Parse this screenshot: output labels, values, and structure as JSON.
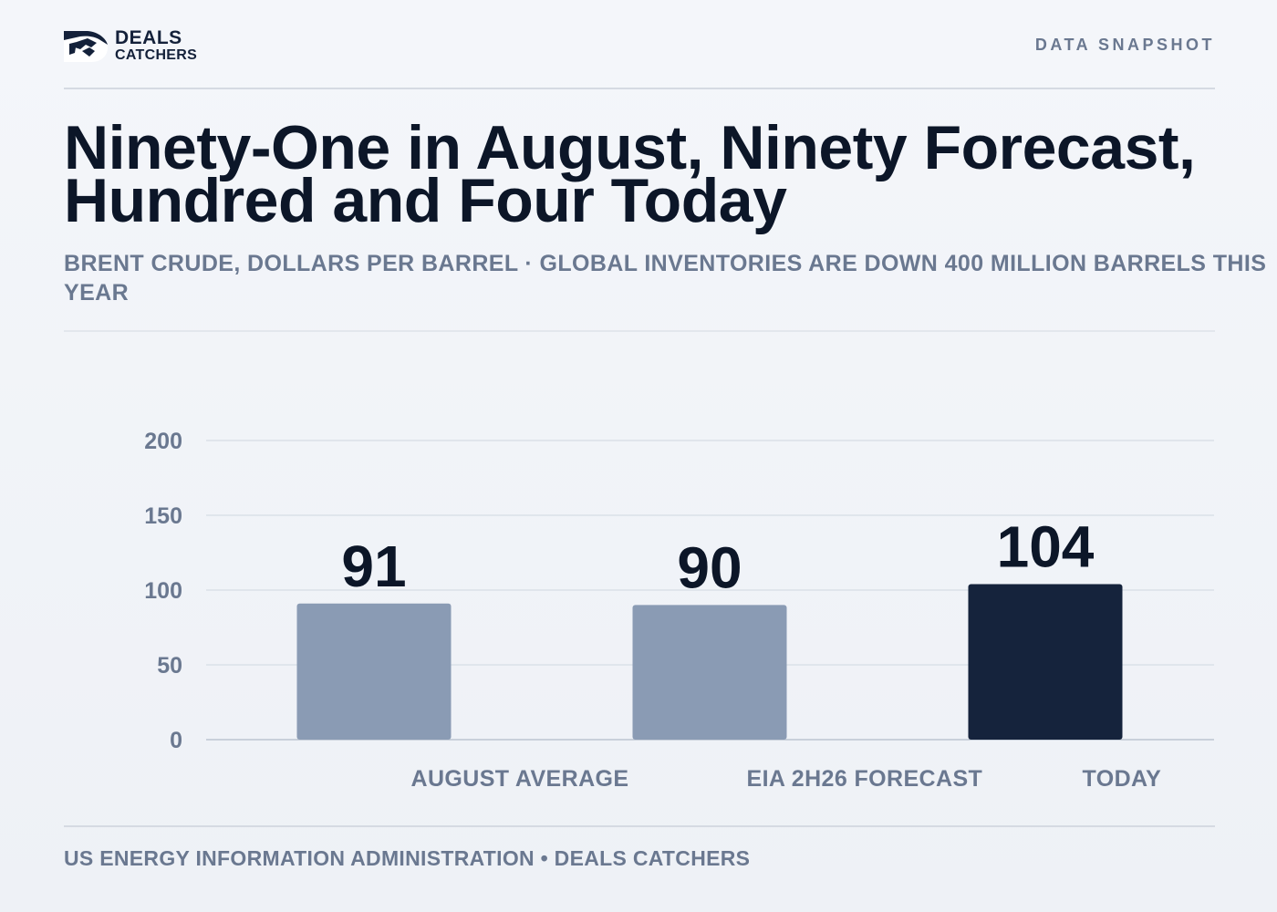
{
  "brand": {
    "line1": "DEALS",
    "line2": "CATCHERS",
    "logo_icon": "handshake-icon"
  },
  "header": {
    "tag": "DATA SNAPSHOT"
  },
  "title": "Ninety-One in August, Ninety Forecast, Hundred and Four Today",
  "subtitle": "BRENT CRUDE, DOLLARS PER BARREL · GLOBAL INVENTORIES ARE DOWN 400 MILLION BARRELS THIS YEAR",
  "footer": {
    "source": "US ENERGY INFORMATION ADMINISTRATION • DEALS CATCHERS"
  },
  "colors": {
    "muted_bar": "#8a9bb4",
    "highlight_bar": "#15233c",
    "grid": "#e0e5ec",
    "axis_text": "#6a7890",
    "value_text": "#0c1628"
  },
  "chart_data": {
    "type": "bar",
    "categories": [
      "AUGUST AVERAGE",
      "EIA 2H26 FORECAST",
      "TODAY"
    ],
    "values": [
      91,
      90,
      104
    ],
    "data_labels": [
      "91",
      "90",
      "104"
    ],
    "highlight_index": 2,
    "ylim": [
      0,
      200
    ],
    "yticks": [
      0,
      50,
      100,
      150,
      200
    ],
    "grid": true,
    "legend": "none"
  }
}
